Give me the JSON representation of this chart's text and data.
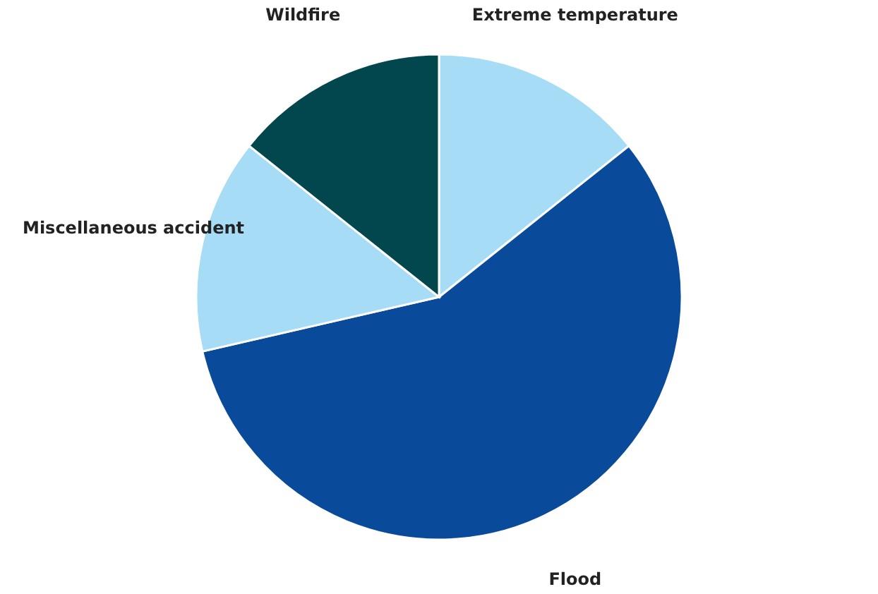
{
  "chart_data": {
    "type": "pie",
    "categories": [
      "Extreme temperature",
      "Flood",
      "Miscellaneous accident",
      "Wildfire"
    ],
    "values": [
      14.3,
      57.1,
      14.3,
      14.3
    ],
    "colors": [
      "#a6dcf5",
      "#0a4a9a",
      "#a6dcf5",
      "#03474e"
    ]
  }
}
